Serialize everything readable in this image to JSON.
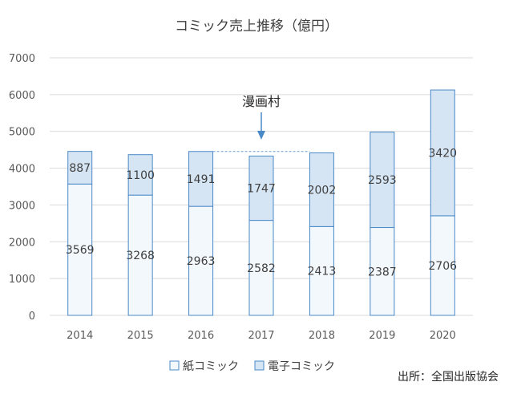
{
  "chart_data": {
    "type": "bar",
    "stacked": true,
    "title": "コミック売上推移（億円）",
    "categories": [
      "2014",
      "2015",
      "2016",
      "2017",
      "2018",
      "2019",
      "2020"
    ],
    "series": [
      {
        "name": "紙コミック",
        "values": [
          3569,
          3268,
          2963,
          2582,
          2413,
          2387,
          2706
        ],
        "fill": "#f3f8fd",
        "stroke": "#4a89c8"
      },
      {
        "name": "電子コミック",
        "values": [
          887,
          1100,
          1491,
          1747,
          2002,
          2593,
          3420
        ],
        "fill": "#d6e5f4",
        "stroke": "#4a89c8"
      }
    ],
    "ylim": [
      0,
      7000
    ],
    "yticks": [
      0,
      1000,
      2000,
      3000,
      4000,
      5000,
      6000,
      7000
    ],
    "grid": true,
    "legend_position": "bottom",
    "annotation": {
      "text": "漫画村",
      "category": "2017",
      "reference_value": 4454
    },
    "source": "出所：全国出版協会"
  }
}
